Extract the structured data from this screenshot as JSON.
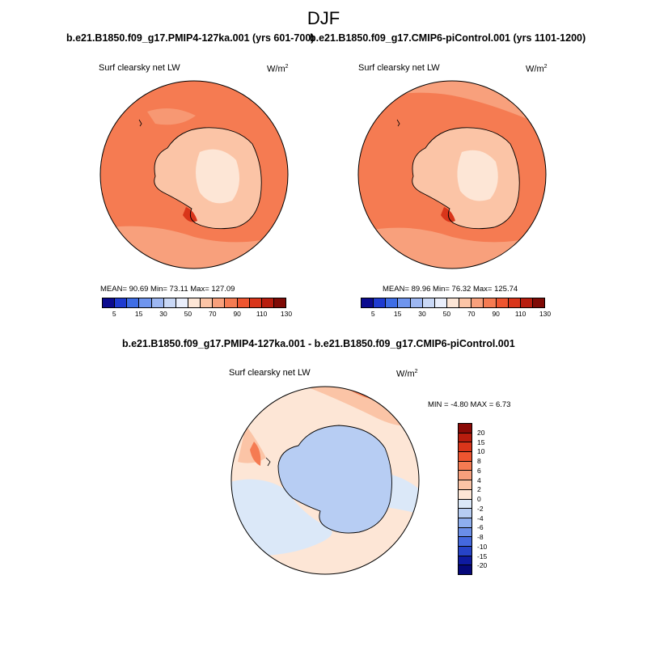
{
  "title": "DJF",
  "panels": {
    "left": {
      "title": "b.e21.B1850.f09_g17.PMIP4-127ka.001 (yrs 601-700)",
      "variable": "Surf clearsky net LW",
      "units": "W/m",
      "units_exp": "2",
      "stats": "MEAN=  90.69  Min=  73.11  Max= 127.09"
    },
    "right": {
      "title": "b.e21.B1850.f09_g17.CMIP6-piControl.001 (yrs 1101-1200)",
      "variable": "Surf clearsky net LW",
      "units": "W/m",
      "units_exp": "2",
      "stats": "MEAN=  89.96  Min=  76.32  Max= 125.74"
    },
    "diff": {
      "title": "b.e21.B1850.f09_g17.PMIP4-127ka.001 - b.e21.B1850.f09_g17.CMIP6-piControl.001",
      "variable": "Surf clearsky net LW",
      "units": "W/m",
      "units_exp": "2",
      "stats": "MIN =  -4.80 MAX =   6.73"
    }
  },
  "colorbar_abs": {
    "labels": [
      "5",
      "15",
      "30",
      "50",
      "70",
      "90",
      "110",
      "130"
    ],
    "colors": [
      "#0b0b8f",
      "#1f3bd0",
      "#3f6ee6",
      "#6f95ee",
      "#9db7f2",
      "#c9d8f6",
      "#e9eefb",
      "#fde6d6",
      "#fbc4a6",
      "#f8a07c",
      "#f57b52",
      "#ee5530",
      "#d9351a",
      "#b81d0e",
      "#7f0a05"
    ]
  },
  "colorbar_diff": {
    "labels": [
      "20",
      "15",
      "10",
      "8",
      "6",
      "4",
      "2",
      "0",
      "-2",
      "-4",
      "-6",
      "-8",
      "-10",
      "-15",
      "-20"
    ],
    "colors": [
      "#8a0a06",
      "#b81d0e",
      "#d9351a",
      "#ee5530",
      "#f57b52",
      "#f8a07c",
      "#fbc4a6",
      "#fde6d6",
      "#dbe8f8",
      "#b7cdf3",
      "#8eaeee",
      "#6a8ee8",
      "#4468de",
      "#2643c8",
      "#0e1aa0",
      "#05087a"
    ]
  },
  "map_colors": {
    "ocean_abs": "#f57b52",
    "ocean_abs_light": "#f8a07c",
    "ice_abs": "#fbc4a6",
    "ice_abs_core": "#fde6d6",
    "coast_abs_hot": "#d9351a",
    "diff_ice": "#b7cdf3",
    "diff_ocean_light": "#dbe8f8",
    "diff_warm": "#fde6d6",
    "diff_warm2": "#fbc4a6",
    "diff_hot": "#f57b52"
  }
}
